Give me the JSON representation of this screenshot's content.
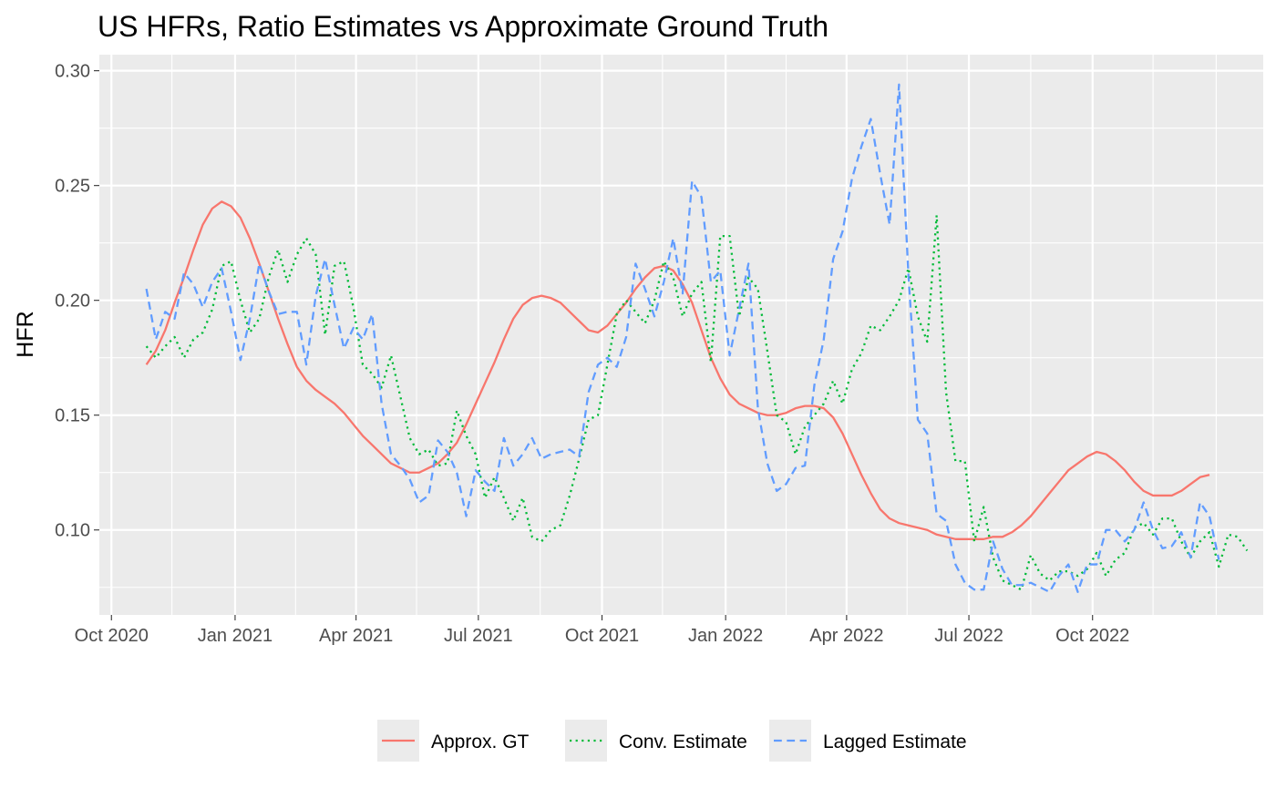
{
  "chart_data": {
    "type": "line",
    "title": "US HFRs, Ratio Estimates vs Approximate Ground Truth",
    "xlabel": "",
    "ylabel": "HFR",
    "x_type": "date",
    "xlim": [
      "2020-09-22",
      "2023-02-05"
    ],
    "ylim": [
      0.063,
      0.307
    ],
    "x_ticks": [
      {
        "date": "2020-10-01",
        "label": "Oct 2020"
      },
      {
        "date": "2021-01-01",
        "label": "Jan 2021"
      },
      {
        "date": "2021-04-01",
        "label": "Apr 2021"
      },
      {
        "date": "2021-07-01",
        "label": "Jul 2021"
      },
      {
        "date": "2021-10-01",
        "label": "Oct 2021"
      },
      {
        "date": "2022-01-01",
        "label": "Jan 2022"
      },
      {
        "date": "2022-04-01",
        "label": "Apr 2022"
      },
      {
        "date": "2022-07-01",
        "label": "Jul 2022"
      },
      {
        "date": "2022-10-01",
        "label": "Oct 2022"
      }
    ],
    "x_minor_ticks": [
      "2020-11-15",
      "2021-02-15",
      "2021-05-16",
      "2021-08-16",
      "2021-11-15",
      "2022-02-15",
      "2022-05-16",
      "2022-08-16",
      "2022-11-15",
      "2023-01-01"
    ],
    "y_ticks": [
      0.1,
      0.15,
      0.2,
      0.25,
      0.3
    ],
    "y_tick_labels": [
      "0.10",
      "0.15",
      "0.20",
      "0.25",
      "0.30"
    ],
    "grid": true,
    "legend_position": "bottom",
    "start_date": "2020-10-27",
    "step_days": 7,
    "series": [
      {
        "name": "Approx. GT",
        "color": "#F8766D",
        "dash": "solid",
        "values": [
          0.172,
          0.178,
          0.187,
          0.199,
          0.21,
          0.222,
          0.233,
          0.24,
          0.243,
          0.241,
          0.236,
          0.227,
          0.216,
          0.204,
          0.192,
          0.181,
          0.171,
          0.165,
          0.161,
          0.158,
          0.155,
          0.151,
          0.146,
          0.141,
          0.137,
          0.133,
          0.129,
          0.127,
          0.125,
          0.125,
          0.127,
          0.129,
          0.133,
          0.138,
          0.146,
          0.155,
          0.164,
          0.173,
          0.183,
          0.192,
          0.198,
          0.201,
          0.202,
          0.201,
          0.199,
          0.195,
          0.191,
          0.187,
          0.186,
          0.189,
          0.194,
          0.199,
          0.205,
          0.21,
          0.214,
          0.215,
          0.213,
          0.207,
          0.199,
          0.187,
          0.175,
          0.166,
          0.159,
          0.155,
          0.153,
          0.151,
          0.15,
          0.15,
          0.151,
          0.153,
          0.154,
          0.154,
          0.153,
          0.149,
          0.142,
          0.133,
          0.124,
          0.116,
          0.109,
          0.105,
          0.103,
          0.102,
          0.101,
          0.1,
          0.098,
          0.097,
          0.096,
          0.096,
          0.096,
          0.096,
          0.097,
          0.097,
          0.099,
          0.102,
          0.106,
          0.111,
          0.116,
          0.121,
          0.126,
          0.129,
          0.132,
          0.134,
          0.133,
          0.13,
          0.126,
          0.121,
          0.117,
          0.115,
          0.115,
          0.115,
          0.117,
          0.12,
          0.123,
          0.124
        ]
      },
      {
        "name": "Conv. Estimate",
        "color": "#00BA38",
        "dash": "dotted",
        "values": [
          0.18,
          0.175,
          0.18,
          0.184,
          0.175,
          0.183,
          0.186,
          0.196,
          0.215,
          0.217,
          0.2,
          0.186,
          0.192,
          0.21,
          0.222,
          0.208,
          0.22,
          0.227,
          0.22,
          0.185,
          0.215,
          0.217,
          0.197,
          0.172,
          0.168,
          0.162,
          0.176,
          0.158,
          0.14,
          0.133,
          0.135,
          0.128,
          0.129,
          0.152,
          0.141,
          0.133,
          0.114,
          0.123,
          0.114,
          0.104,
          0.114,
          0.097,
          0.095,
          0.1,
          0.102,
          0.115,
          0.131,
          0.148,
          0.15,
          0.172,
          0.194,
          0.2,
          0.195,
          0.19,
          0.2,
          0.217,
          0.21,
          0.193,
          0.203,
          0.208,
          0.173,
          0.228,
          0.228,
          0.193,
          0.21,
          0.205,
          0.178,
          0.15,
          0.147,
          0.133,
          0.145,
          0.15,
          0.155,
          0.165,
          0.155,
          0.17,
          0.177,
          0.189,
          0.187,
          0.193,
          0.2,
          0.214,
          0.193,
          0.182,
          0.237,
          0.16,
          0.13,
          0.13,
          0.095,
          0.11,
          0.088,
          0.078,
          0.076,
          0.074,
          0.089,
          0.081,
          0.078,
          0.082,
          0.082,
          0.08,
          0.083,
          0.09,
          0.08,
          0.087,
          0.09,
          0.101,
          0.103,
          0.098,
          0.105,
          0.105,
          0.095,
          0.088,
          0.095,
          0.099,
          0.084,
          0.098,
          0.097,
          0.091
        ]
      },
      {
        "name": "Lagged Estimate",
        "color": "#619CFF",
        "dash": "dashed",
        "values": [
          0.205,
          0.183,
          0.195,
          0.192,
          0.212,
          0.207,
          0.197,
          0.208,
          0.214,
          0.195,
          0.174,
          0.192,
          0.216,
          0.204,
          0.194,
          0.195,
          0.195,
          0.172,
          0.202,
          0.218,
          0.198,
          0.179,
          0.188,
          0.183,
          0.194,
          0.155,
          0.133,
          0.128,
          0.122,
          0.112,
          0.115,
          0.139,
          0.134,
          0.125,
          0.106,
          0.126,
          0.121,
          0.117,
          0.14,
          0.128,
          0.133,
          0.14,
          0.131,
          0.133,
          0.134,
          0.135,
          0.132,
          0.16,
          0.172,
          0.175,
          0.171,
          0.184,
          0.216,
          0.205,
          0.193,
          0.208,
          0.227,
          0.203,
          0.252,
          0.245,
          0.208,
          0.213,
          0.176,
          0.196,
          0.216,
          0.153,
          0.129,
          0.117,
          0.12,
          0.127,
          0.128,
          0.163,
          0.183,
          0.218,
          0.23,
          0.253,
          0.267,
          0.279,
          0.255,
          0.233,
          0.294,
          0.211,
          0.148,
          0.142,
          0.107,
          0.104,
          0.085,
          0.077,
          0.074,
          0.074,
          0.095,
          0.083,
          0.076,
          0.076,
          0.077,
          0.075,
          0.073,
          0.08,
          0.085,
          0.073,
          0.085,
          0.085,
          0.1,
          0.1,
          0.095,
          0.1,
          0.112,
          0.1,
          0.092,
          0.093,
          0.099,
          0.088,
          0.112,
          0.106,
          0.087
        ]
      }
    ]
  }
}
